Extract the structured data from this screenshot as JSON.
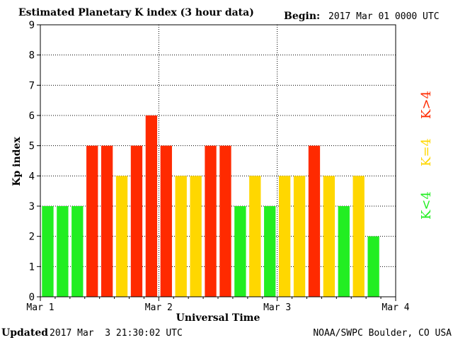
{
  "header": {
    "title": "Estimated Planetary K index (3 hour data)",
    "begin_label": "Begin:",
    "begin_value": "2017 Mar 01 0000 UTC"
  },
  "footer": {
    "updated_label": "Updated",
    "updated_value": "2017 Mar  3 21:30:02 UTC",
    "source": "NOAA/SWPC Boulder, CO USA"
  },
  "legend": {
    "high": "K>4",
    "equal": "K=4",
    "low": "K<4"
  },
  "colors": {
    "low": "#22ee22",
    "equal": "#ffd700",
    "high": "#ff2a00"
  },
  "chart_data": {
    "type": "bar",
    "title": "Estimated Planetary K index (3 hour data)",
    "xlabel": "Universal Time",
    "ylabel": "Kp index",
    "ylim": [
      0,
      9
    ],
    "y_ticks": [
      0,
      1,
      2,
      3,
      4,
      5,
      6,
      7,
      8,
      9
    ],
    "x_tick_labels": [
      "Mar 1",
      "Mar 2",
      "Mar 3",
      "Mar 4"
    ],
    "bars_per_day": 8,
    "days": 3,
    "grid": true,
    "values": [
      3,
      3,
      3,
      5,
      5,
      4,
      5,
      6,
      5,
      4,
      4,
      5,
      5,
      3,
      4,
      3,
      4,
      4,
      5,
      4,
      3,
      4,
      2
    ]
  }
}
